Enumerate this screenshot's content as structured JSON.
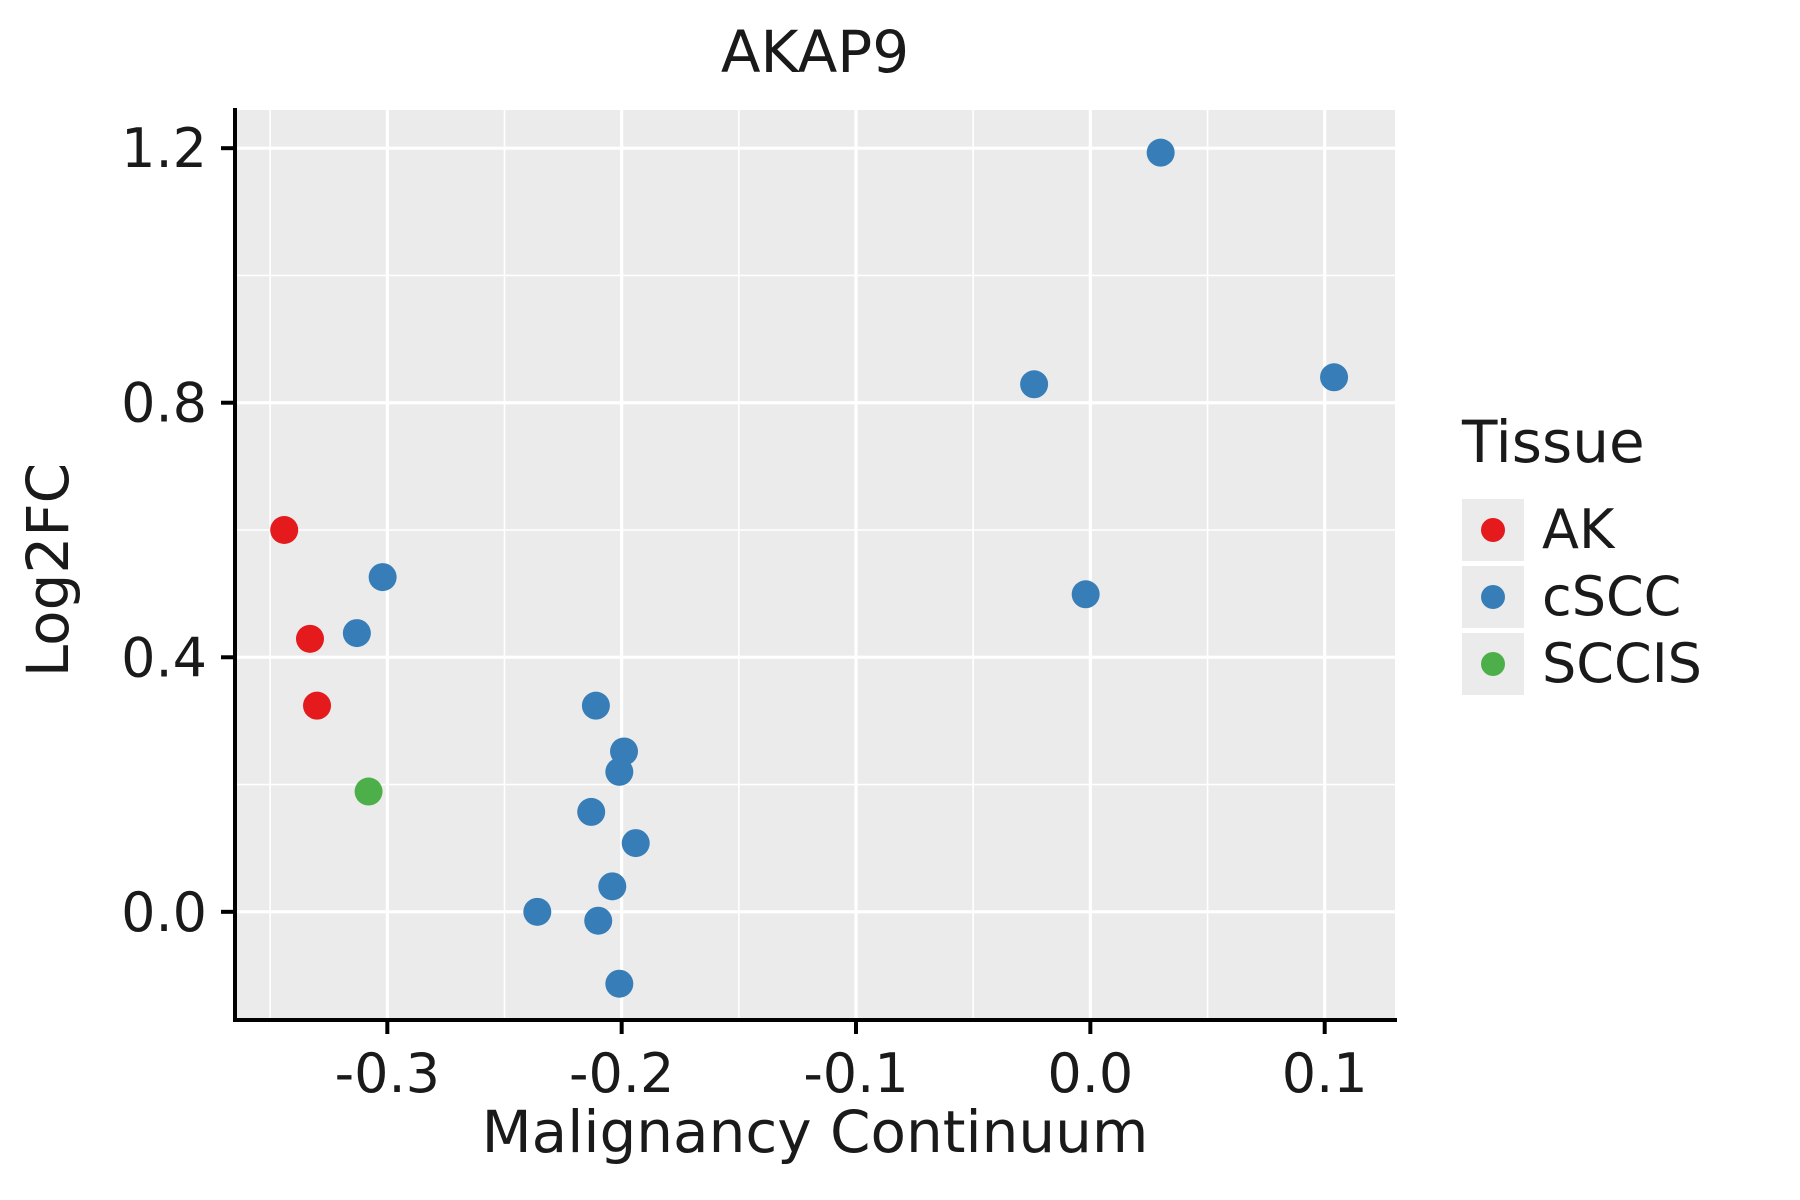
{
  "chart_data": {
    "type": "scatter",
    "title": "AKAP9",
    "xlabel": "Malignancy Continuum",
    "ylabel": "Log2FC",
    "legend_title": "Tissue",
    "legend_position": "right",
    "grid": true,
    "panel_color": "#ebebeb",
    "grid_color": "#ffffff",
    "axis_color": "#000000",
    "xlim": [
      -0.365,
      0.13
    ],
    "ylim": [
      -0.17,
      1.26
    ],
    "x_ticks": [
      {
        "v": -0.3,
        "label": "-0.3"
      },
      {
        "v": -0.2,
        "label": "-0.2"
      },
      {
        "v": -0.1,
        "label": "-0.1"
      },
      {
        "v": 0.0,
        "label": "0.0"
      },
      {
        "v": 0.1,
        "label": "0.1"
      }
    ],
    "y_ticks": [
      {
        "v": 0.0,
        "label": "0.0"
      },
      {
        "v": 0.4,
        "label": "0.4"
      },
      {
        "v": 0.8,
        "label": "0.8"
      },
      {
        "v": 1.2,
        "label": "1.2"
      }
    ],
    "x_minor": [
      -0.35,
      -0.25,
      -0.15,
      -0.05,
      0.05
    ],
    "y_minor": [
      0.2,
      0.6,
      1.0
    ],
    "point_radius": 14,
    "series": [
      {
        "name": "AK",
        "color": "#e41a1c",
        "points": [
          [
            -0.344,
            0.6
          ],
          [
            -0.333,
            0.429
          ],
          [
            -0.33,
            0.324
          ]
        ]
      },
      {
        "name": "cSCC",
        "color": "#377eb8",
        "points": [
          [
            -0.313,
            0.438
          ],
          [
            -0.302,
            0.526
          ],
          [
            -0.211,
            0.324
          ],
          [
            -0.199,
            0.252
          ],
          [
            -0.201,
            0.22
          ],
          [
            -0.213,
            0.157
          ],
          [
            -0.194,
            0.108
          ],
          [
            -0.204,
            0.04
          ],
          [
            -0.236,
            0.0
          ],
          [
            -0.21,
            -0.014
          ],
          [
            -0.201,
            -0.113
          ],
          [
            -0.024,
            0.829
          ],
          [
            0.03,
            1.193
          ],
          [
            -0.002,
            0.499
          ],
          [
            0.104,
            0.84
          ]
        ]
      },
      {
        "name": "SCCIS",
        "color": "#4daf4a",
        "points": [
          [
            -0.308,
            0.189
          ]
        ]
      }
    ]
  }
}
